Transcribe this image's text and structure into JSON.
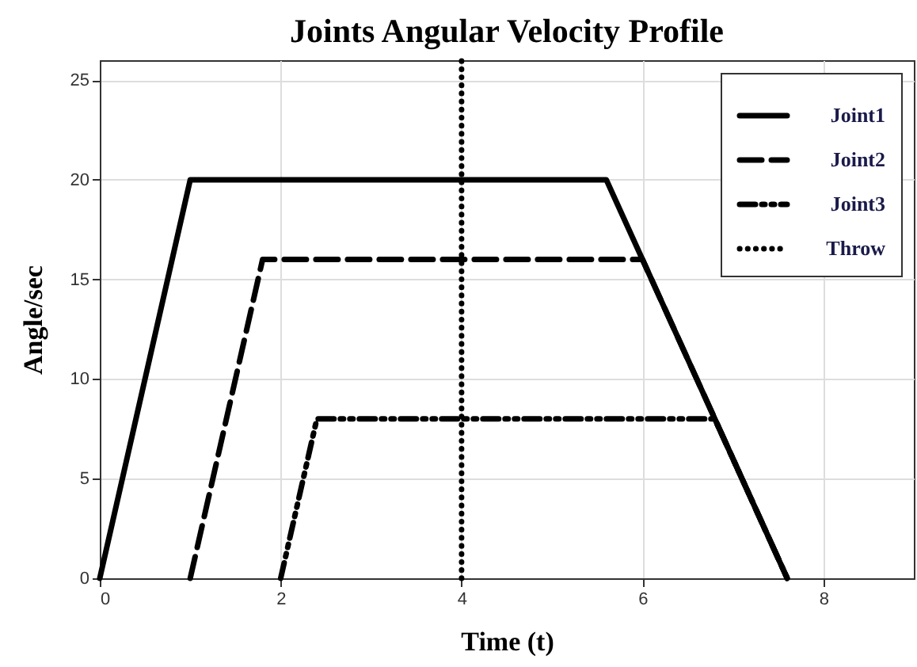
{
  "chart_data": {
    "type": "line",
    "title": "Joints Angular Velocity Profile",
    "xlabel": "Time (t)",
    "ylabel": "Angle/sec",
    "xlim": [
      0,
      9
    ],
    "xticks": [
      0,
      2,
      4,
      6,
      8
    ],
    "ylim": [
      0,
      26
    ],
    "yticks": [
      0,
      5,
      10,
      15,
      20,
      25
    ],
    "grid": true,
    "legend": "top right",
    "series": [
      {
        "name": "Joint1",
        "color": "#000000",
        "line_style": "solid",
        "x": [
          0,
          1,
          5.6,
          7.6
        ],
        "values": [
          0,
          20,
          20,
          0
        ]
      },
      {
        "name": "Joint2",
        "color": "#000000",
        "line_style": "dashed",
        "x": [
          1,
          1.8,
          6,
          7.6
        ],
        "values": [
          0,
          16,
          16,
          0
        ]
      },
      {
        "name": "Joint3",
        "color": "#000000",
        "line_style": "dashdot",
        "x": [
          2,
          2.4,
          6.8,
          7.6
        ],
        "values": [
          0,
          8,
          8,
          0
        ]
      },
      {
        "name": "Throw",
        "color": "#000000",
        "line_style": "dotted",
        "x": [
          4,
          4
        ],
        "values": [
          0,
          26
        ]
      }
    ]
  }
}
